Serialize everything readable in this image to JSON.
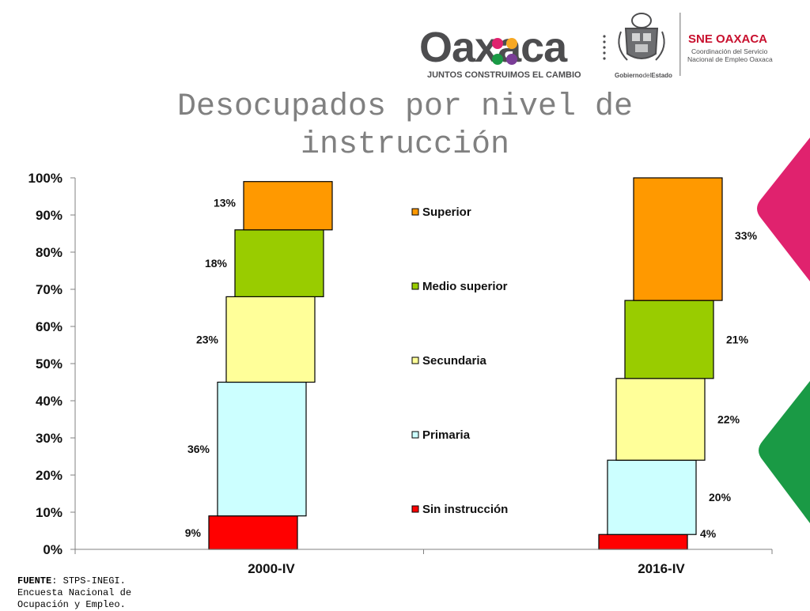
{
  "header": {
    "brand": "Oaxaca",
    "slogan": "JUNTOS CONSTRUIMOS EL CAMBIO",
    "gobierno_prefix": "Gobierno",
    "gobierno_mid": "del",
    "gobierno_suffix": "Estado",
    "sne_title": "SNE OAXACA",
    "sne_line1": "Coordinación del Servicio",
    "sne_line2": "Nacional de Empleo Oaxaca"
  },
  "slide": {
    "title": "Desocupados por nivel de instrucción"
  },
  "source": {
    "label": "FUENTE",
    "text": ": STPS-INEGI. Encuesta Nacional de Ocupación y Empleo."
  },
  "colors": {
    "Superior": "#ff9900",
    "Medio superior": "#99cc00",
    "Secundaria": "#ffff99",
    "Primaria": "#ccffff",
    "Sin instrucción": "#ff0000",
    "accent_pink": "#e0226e",
    "accent_green": "#1a9a45",
    "logo_gray": "#4d4d4f"
  },
  "chart_data": {
    "type": "bar",
    "stacked": true,
    "categories": [
      "2000-IV",
      "2016-IV"
    ],
    "series": [
      {
        "name": "Sin instrucción",
        "values": [
          9,
          4
        ]
      },
      {
        "name": "Primaria",
        "values": [
          36,
          20
        ]
      },
      {
        "name": "Secundaria",
        "values": [
          23,
          22
        ]
      },
      {
        "name": "Medio superior",
        "values": [
          18,
          21
        ]
      },
      {
        "name": "Superior",
        "values": [
          13,
          33
        ]
      }
    ],
    "ylim": [
      0,
      100
    ],
    "yticks": [
      "0%",
      "10%",
      "20%",
      "30%",
      "40%",
      "50%",
      "60%",
      "70%",
      "80%",
      "90%",
      "100%"
    ],
    "legend_order": [
      "Superior",
      "Medio superior",
      "Secundaria",
      "Primaria",
      "Sin instrucción"
    ],
    "legend_position": "center",
    "value_suffix": "%",
    "grid": false
  }
}
